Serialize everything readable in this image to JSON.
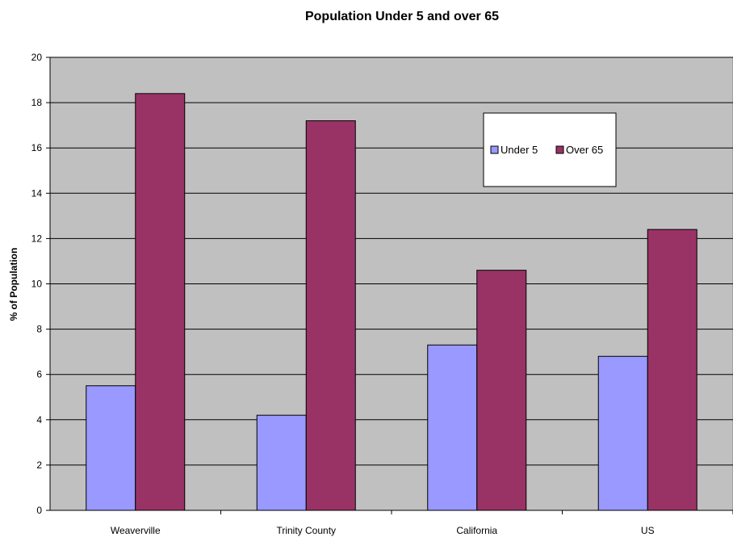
{
  "chart_data": {
    "type": "bar",
    "title": "Population Under 5 and over 65",
    "xlabel": "",
    "ylabel": "% of Population",
    "categories": [
      "Weaverville",
      "Trinity County",
      "California",
      "US"
    ],
    "series": [
      {
        "name": "Under 5",
        "color": "#9999ff",
        "values": [
          5.5,
          4.2,
          7.3,
          6.8
        ]
      },
      {
        "name": "Over 65",
        "color": "#993366",
        "values": [
          18.4,
          17.2,
          10.6,
          12.4
        ]
      }
    ],
    "ylim": [
      0,
      20
    ],
    "yticks": [
      0,
      2,
      4,
      6,
      8,
      10,
      12,
      14,
      16,
      18,
      20
    ],
    "grid": true,
    "plot_background": "#c0c0c0",
    "legend_position": "top-right"
  }
}
